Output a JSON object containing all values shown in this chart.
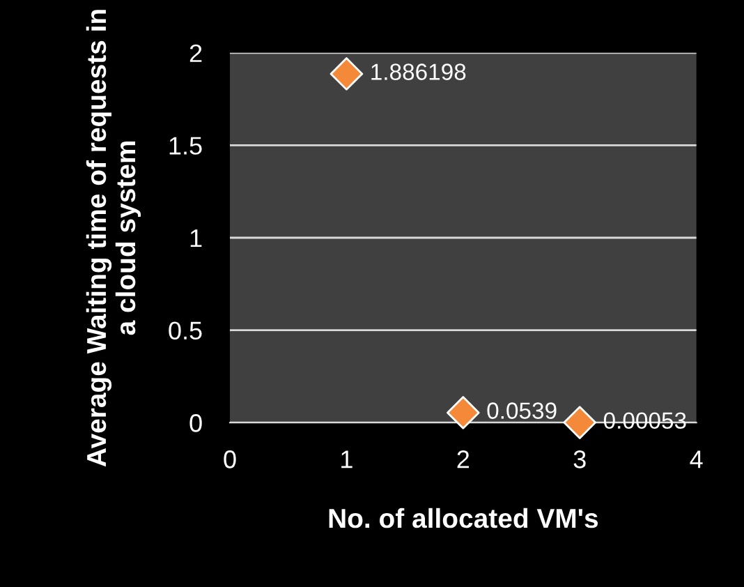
{
  "chart_data": {
    "type": "scatter",
    "xlabel": "No. of allocated VM's",
    "ylabel": "Average Waiting time of requests in a cloud system",
    "x": [
      1,
      2,
      3
    ],
    "series": [
      {
        "color": "#f5893a",
        "values": [
          1.886198,
          0.0539,
          0.00053
        ],
        "value_labels": [
          "1.886198",
          "0.0539",
          "0.00053"
        ]
      }
    ],
    "xlim": [
      0,
      4
    ],
    "xticks": [
      0,
      1,
      2,
      3,
      4
    ],
    "ylim": [
      0,
      2
    ],
    "yticks": [
      0,
      0.5,
      1,
      1.5,
      2
    ],
    "grid": "y",
    "marker": "diamond",
    "legend": false
  }
}
